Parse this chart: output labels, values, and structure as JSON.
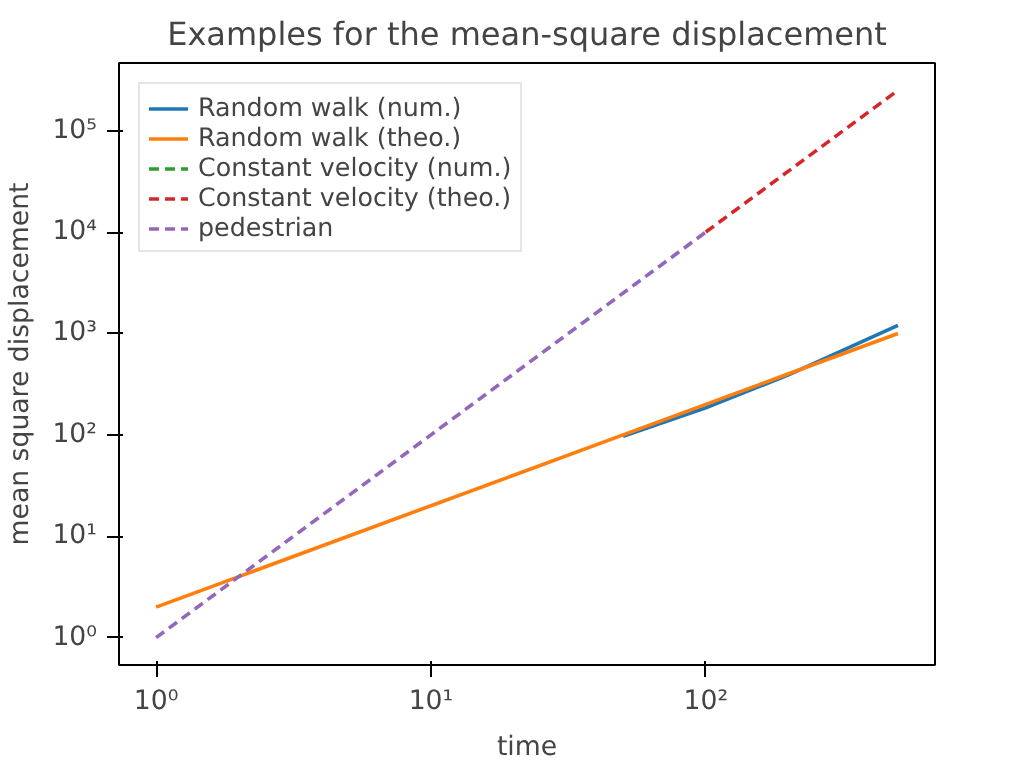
{
  "chart_data": {
    "type": "line",
    "title": "Examples for the mean-square displacement",
    "xlabel": "time",
    "ylabel": "mean square displacement",
    "log": "xy",
    "grid": false,
    "legend": "top left",
    "xlim": [
      0.733,
      682
    ],
    "ylim": [
      0.537,
      465000
    ],
    "xticks": [
      {
        "value": 1,
        "label": "10⁰"
      },
      {
        "value": 10,
        "label": "10¹"
      },
      {
        "value": 100,
        "label": "10²"
      }
    ],
    "yticks": [
      {
        "value": 1,
        "label": "10⁰"
      },
      {
        "value": 10,
        "label": "10¹"
      },
      {
        "value": 100,
        "label": "10²"
      },
      {
        "value": 1000,
        "label": "10³"
      },
      {
        "value": 10000,
        "label": "10⁴"
      },
      {
        "value": 100000,
        "label": "10⁵"
      }
    ],
    "series": [
      {
        "name": "Random walk (num.)",
        "color": "#1f77b4",
        "line_style": "solid",
        "x": [
          50,
          100,
          200,
          500
        ],
        "values": [
          97,
          185,
          390,
          1200
        ]
      },
      {
        "name": "Random walk (theo.)",
        "color": "#ff7f0e",
        "line_style": "solid",
        "x": [
          1,
          2,
          5,
          10,
          20,
          50,
          100,
          200,
          500
        ],
        "values": [
          2,
          4,
          10,
          20,
          40,
          100,
          200,
          400,
          1000
        ]
      },
      {
        "name": "Constant velocity (num.)",
        "color": "#2ca02c",
        "line_style": "dashed"
      },
      {
        "name": "Constant velocity (theo.)",
        "color": "#d62728",
        "line_style": "dashed",
        "x": [
          100,
          500
        ],
        "values": [
          10000,
          250000
        ]
      },
      {
        "name": "pedestrian",
        "color": "#9467bd",
        "line_style": "dashed",
        "x": [
          1,
          10,
          100
        ],
        "values": [
          1,
          100,
          10000
        ]
      }
    ]
  }
}
